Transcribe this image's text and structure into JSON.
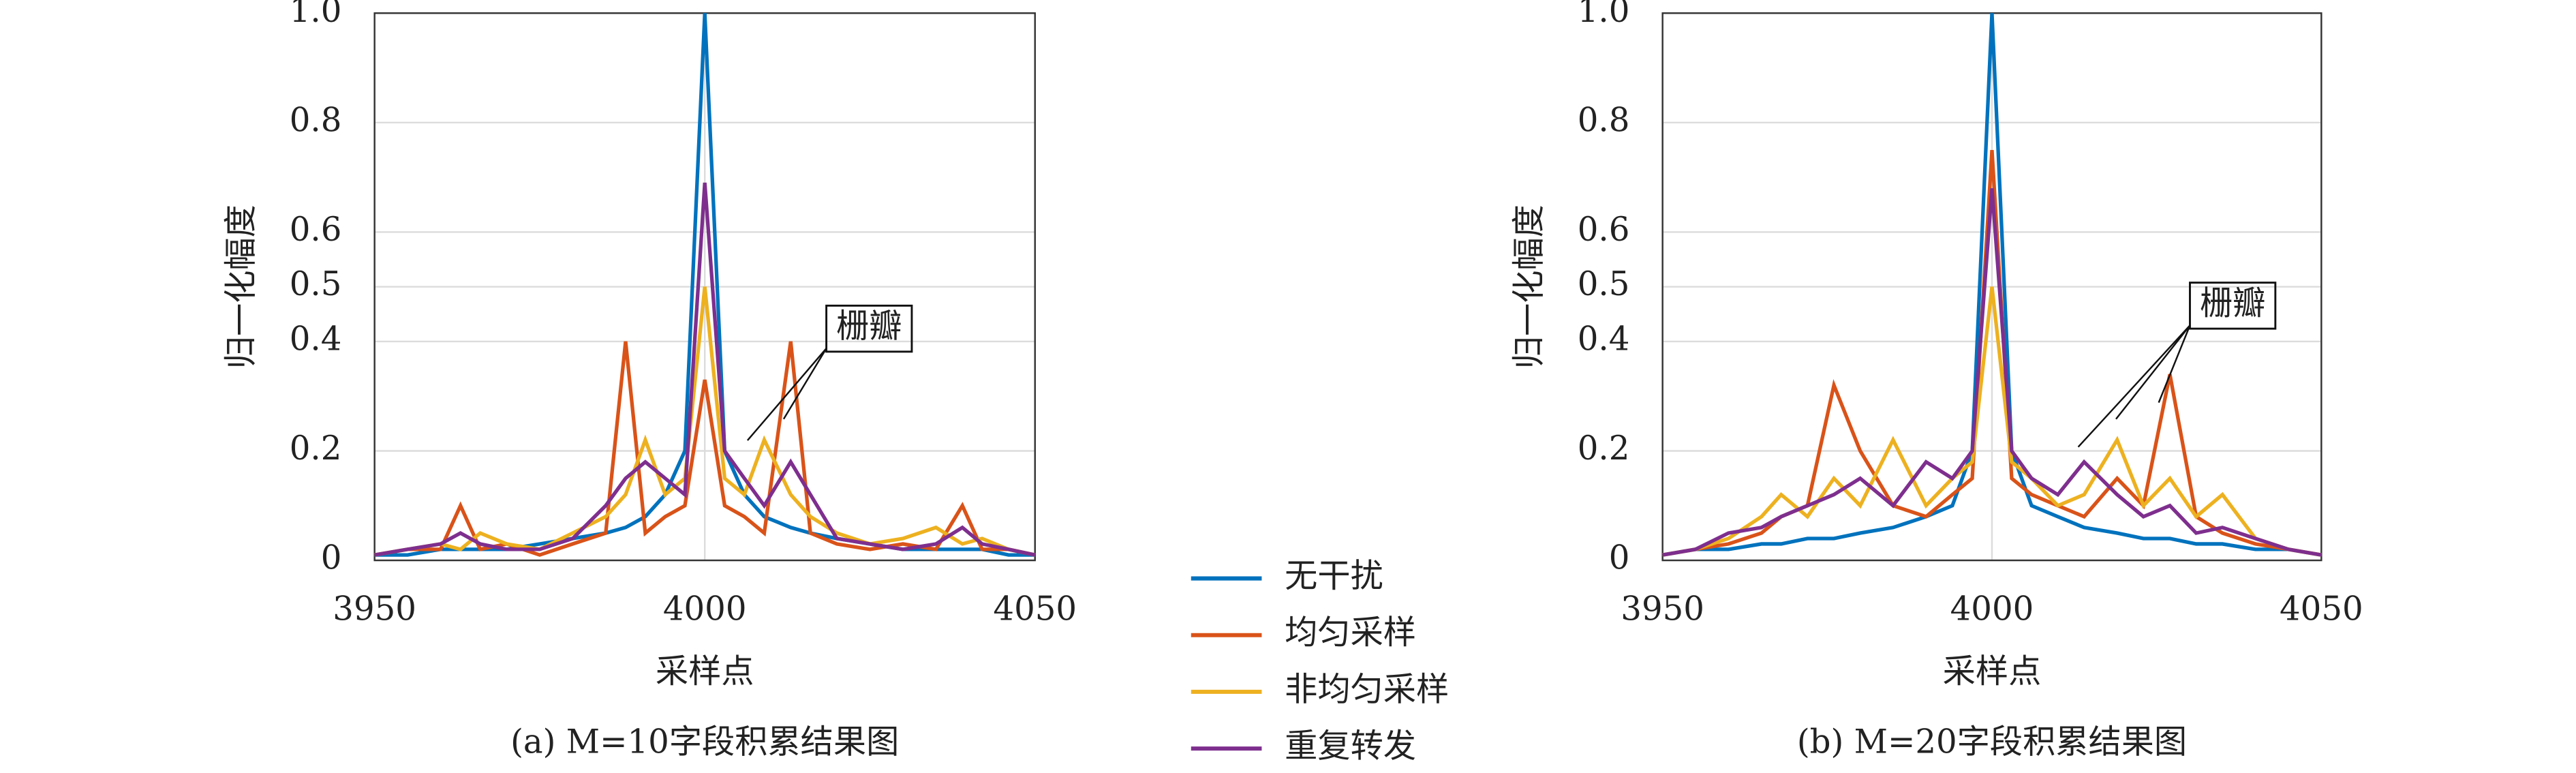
{
  "chart_data": [
    {
      "type": "line",
      "caption": "(a) M=10字段积累结果图",
      "xlabel": "采样点",
      "ylabel": "归一化幅度",
      "annotation": "栅瓣",
      "x": [
        3950,
        3955,
        3960,
        3963,
        3966,
        3970,
        3975,
        3980,
        3985,
        3988,
        3991,
        3994,
        3997,
        4000,
        4003,
        4006,
        4009,
        4013,
        4016,
        4020,
        4025,
        4030,
        4035,
        4039,
        4042,
        4046,
        4050
      ],
      "xlim": [
        3950,
        4050
      ],
      "xticks": [
        3950,
        4000,
        4050
      ],
      "ylim": [
        0,
        1
      ],
      "yticks": [
        0,
        0.2,
        0.4,
        0.5,
        0.6,
        0.8,
        {
          "value": 1,
          "label": "1.0"
        }
      ],
      "grid": true,
      "series": [
        {
          "name": "无干扰",
          "color": "#0072bd",
          "values": [
            0.01,
            0.01,
            0.02,
            0.02,
            0.02,
            0.02,
            0.03,
            0.04,
            0.05,
            0.06,
            0.08,
            0.12,
            0.2,
            1.0,
            0.2,
            0.12,
            0.08,
            0.06,
            0.05,
            0.04,
            0.03,
            0.02,
            0.02,
            0.02,
            0.02,
            0.01,
            0.01
          ]
        },
        {
          "name": "均匀采样",
          "color": "#d95319",
          "values": [
            0.01,
            0.02,
            0.02,
            0.1,
            0.02,
            0.03,
            0.01,
            0.03,
            0.05,
            0.4,
            0.05,
            0.08,
            0.1,
            0.33,
            0.1,
            0.08,
            0.05,
            0.4,
            0.05,
            0.03,
            0.02,
            0.03,
            0.02,
            0.1,
            0.02,
            0.02,
            0.01
          ]
        },
        {
          "name": "非均匀采样",
          "color": "#edb120",
          "values": [
            0.01,
            0.02,
            0.03,
            0.02,
            0.05,
            0.03,
            0.02,
            0.05,
            0.08,
            0.12,
            0.22,
            0.12,
            0.15,
            0.5,
            0.15,
            0.12,
            0.22,
            0.12,
            0.08,
            0.05,
            0.03,
            0.04,
            0.06,
            0.03,
            0.04,
            0.02,
            0.01
          ]
        },
        {
          "name": "重复转发",
          "color": "#7e2f8e",
          "values": [
            0.01,
            0.02,
            0.03,
            0.05,
            0.03,
            0.02,
            0.02,
            0.04,
            0.1,
            0.15,
            0.18,
            0.15,
            0.12,
            0.69,
            0.2,
            0.15,
            0.1,
            0.18,
            0.12,
            0.04,
            0.03,
            0.02,
            0.03,
            0.06,
            0.03,
            0.02,
            0.01
          ]
        }
      ]
    },
    {
      "type": "line",
      "caption": "(b) M=20字段积累结果图",
      "xlabel": "采样点",
      "ylabel": "归一化幅度",
      "annotation": "栅瓣",
      "x": [
        3950,
        3955,
        3960,
        3965,
        3968,
        3972,
        3976,
        3980,
        3985,
        3990,
        3994,
        3997,
        4000,
        4003,
        4006,
        4010,
        4014,
        4019,
        4023,
        4027,
        4031,
        4035,
        4040,
        4045,
        4050
      ],
      "xlim": [
        3950,
        4050
      ],
      "xticks": [
        3950,
        4000,
        4050
      ],
      "ylim": [
        0,
        1
      ],
      "yticks": [
        0,
        0.2,
        0.4,
        0.5,
        0.6,
        0.8,
        {
          "value": 1,
          "label": "1.0"
        }
      ],
      "grid": true,
      "series": [
        {
          "name": "无干扰",
          "color": "#0072bd",
          "values": [
            0.01,
            0.02,
            0.02,
            0.03,
            0.03,
            0.04,
            0.04,
            0.05,
            0.06,
            0.08,
            0.1,
            0.2,
            1.0,
            0.2,
            0.1,
            0.08,
            0.06,
            0.05,
            0.04,
            0.04,
            0.03,
            0.03,
            0.02,
            0.02,
            0.01
          ]
        },
        {
          "name": "均匀采样",
          "color": "#d95319",
          "values": [
            0.01,
            0.02,
            0.03,
            0.05,
            0.08,
            0.1,
            0.32,
            0.2,
            0.1,
            0.08,
            0.12,
            0.15,
            0.75,
            0.15,
            0.12,
            0.1,
            0.08,
            0.15,
            0.1,
            0.34,
            0.08,
            0.05,
            0.03,
            0.02,
            0.01
          ]
        },
        {
          "name": "非均匀采样",
          "color": "#edb120",
          "values": [
            0.01,
            0.02,
            0.04,
            0.08,
            0.12,
            0.08,
            0.15,
            0.1,
            0.22,
            0.1,
            0.15,
            0.18,
            0.5,
            0.18,
            0.15,
            0.1,
            0.12,
            0.22,
            0.1,
            0.15,
            0.08,
            0.12,
            0.04,
            0.02,
            0.01
          ]
        },
        {
          "name": "重复转发",
          "color": "#7e2f8e",
          "values": [
            0.01,
            0.02,
            0.05,
            0.06,
            0.08,
            0.1,
            0.12,
            0.15,
            0.1,
            0.18,
            0.15,
            0.2,
            0.68,
            0.2,
            0.15,
            0.12,
            0.18,
            0.12,
            0.08,
            0.1,
            0.05,
            0.06,
            0.04,
            0.02,
            0.01
          ]
        }
      ]
    }
  ]
}
